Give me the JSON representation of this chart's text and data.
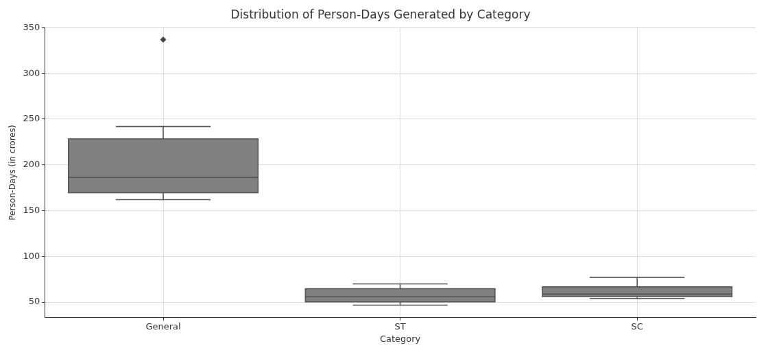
{
  "chart_data": {
    "type": "box",
    "title": "Distribution of Person-Days Generated by Category",
    "xlabel": "Category",
    "ylabel": "Person-Days (in crores)",
    "categories": [
      "General",
      "ST",
      "SC"
    ],
    "boxes": [
      {
        "low": 162,
        "q1": 169.6,
        "median": 186.4,
        "q3": 228.5,
        "high": 242,
        "outliers": [
          337
        ]
      },
      {
        "low": 46.7,
        "q1": 50.3,
        "median": 56.1,
        "q3": 64.7,
        "high": 69.9
      },
      {
        "low": 54,
        "q1": 56.1,
        "median": 58.8,
        "q3": 66.6,
        "high": 77.1
      }
    ],
    "color": "#808080",
    "ylim": [
      33,
      350
    ],
    "yticks": [
      50,
      100,
      150,
      200,
      250,
      300,
      350
    ],
    "grid": true,
    "marker": "diamond"
  }
}
